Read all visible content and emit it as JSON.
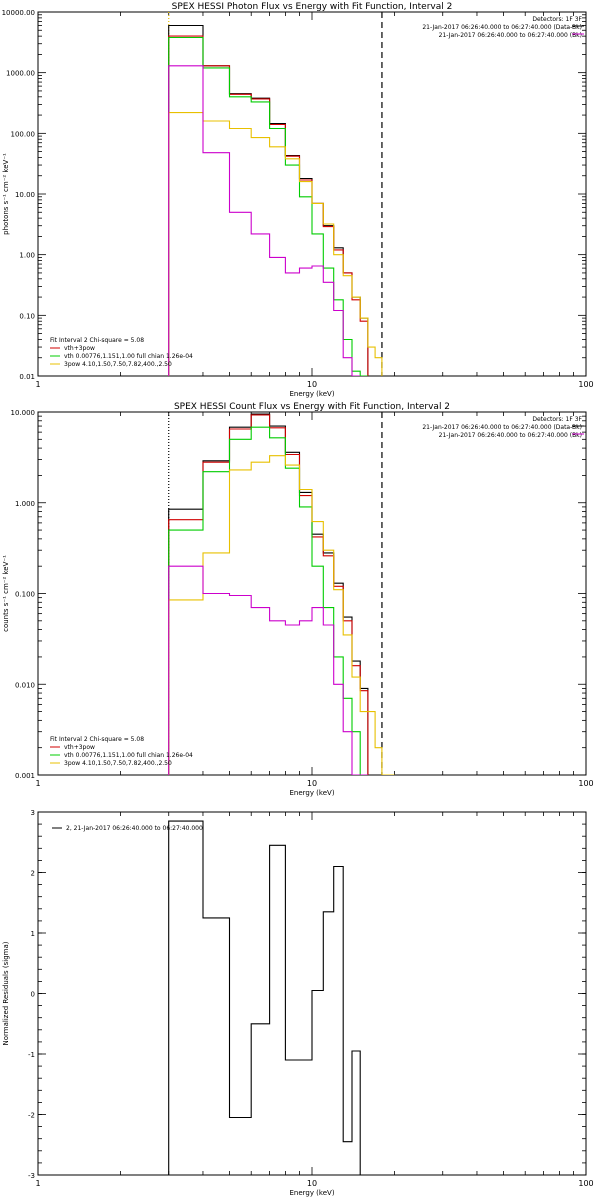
{
  "chart_data": [
    {
      "type": "line",
      "title": "SPEX HESSI Photon Flux vs Energy with Fit Function, Interval 2",
      "xlabel": "Energy (keV)",
      "ylabel": "photons s⁻¹ cm⁻² keV⁻¹",
      "xscale": "log",
      "yscale": "log",
      "xlim": [
        1,
        100
      ],
      "ylim": [
        0.01,
        10000
      ],
      "xticks": [
        {
          "v": 1,
          "label": "1"
        },
        {
          "v": 10,
          "label": "10"
        },
        {
          "v": 100,
          "label": "100"
        }
      ],
      "yticks": [
        {
          "v": 0.01,
          "label": "0.01"
        },
        {
          "v": 0.1,
          "label": "0.10"
        },
        {
          "v": 1,
          "label": "1.00"
        },
        {
          "v": 10,
          "label": "10.00"
        },
        {
          "v": 100,
          "label": "100.00"
        },
        {
          "v": 1000,
          "label": "1000.00"
        },
        {
          "v": 10000,
          "label": "10000.00"
        }
      ],
      "vlines": [
        {
          "x": 3.0,
          "style": "dotted",
          "color": "#e8c000"
        },
        {
          "x": 18.0,
          "style": "dashed",
          "color": "#000000"
        }
      ],
      "header_right": [
        "Detectors: 1F 3F",
        "21-Jan-2017 06:26:40.000 to 06:27:40.000 (Data-Bk)",
        "21-Jan-2017 06:26:40.000 to 06:27:40.000 (Bk)"
      ],
      "fit_text": "Fit Interval 2   Chi-square = 5.08",
      "legend": [
        {
          "label": "vth+3pow",
          "color": "#d00000"
        },
        {
          "label": "vth 0.00776,1.151,1.00  full chian 1.26e-04",
          "color": "#00cc00"
        },
        {
          "label": "3pow 4.10,1.50,7.50,7.82,400.,2.50",
          "color": "#e8c000"
        }
      ],
      "edges": [
        3,
        4,
        5,
        6,
        7,
        8,
        9,
        10,
        11,
        12,
        13,
        14,
        15,
        16,
        17,
        18,
        19,
        20,
        21,
        22,
        23,
        24,
        25
      ],
      "series": [
        {
          "color": "#000000",
          "values": [
            6000,
            1300,
            450,
            380,
            145,
            43,
            18,
            7,
            3,
            1.3,
            0.5,
            0.2,
            0.09,
            null,
            null,
            null,
            null,
            null,
            null,
            null,
            null,
            null
          ]
        },
        {
          "color": "#d00000",
          "values": [
            4000,
            1300,
            440,
            370,
            140,
            42,
            17,
            7,
            2.9,
            1.2,
            0.5,
            0.18,
            0.08,
            null,
            null,
            null,
            null,
            null,
            null,
            null,
            null,
            null
          ]
        },
        {
          "color": "#00cc00",
          "values": [
            3800,
            1200,
            400,
            330,
            120,
            30,
            9,
            2.2,
            0.6,
            0.18,
            0.04,
            0.012,
            0.01,
            null,
            null,
            null,
            null,
            null,
            null,
            null,
            null,
            null
          ]
        },
        {
          "color": "#e8c000",
          "values": [
            220,
            160,
            120,
            85,
            60,
            38,
            16,
            7,
            3.2,
            1.0,
            0.45,
            0.2,
            0.09,
            0.03,
            0.02,
            null,
            null,
            null,
            null,
            null,
            null,
            null
          ]
        },
        {
          "color": "#cc00cc",
          "values": [
            1300,
            48,
            5,
            2.2,
            0.9,
            0.5,
            0.6,
            0.65,
            0.35,
            0.12,
            0.02,
            0.01,
            null,
            null,
            null,
            null,
            null,
            null,
            null,
            null,
            null,
            null
          ]
        }
      ]
    },
    {
      "type": "line",
      "title": "SPEX HESSI Count Flux vs Energy with Fit Function, Interval 2",
      "xlabel": "Energy (keV)",
      "ylabel": "counts s⁻¹ cm⁻² keV⁻¹",
      "xscale": "log",
      "yscale": "log",
      "xlim": [
        1,
        100
      ],
      "ylim": [
        0.001,
        10
      ],
      "xticks": [
        {
          "v": 1,
          "label": "1"
        },
        {
          "v": 10,
          "label": "10"
        },
        {
          "v": 100,
          "label": "100"
        }
      ],
      "yticks": [
        {
          "v": 0.001,
          "label": "0.001"
        },
        {
          "v": 0.01,
          "label": "0.010"
        },
        {
          "v": 0.1,
          "label": "0.100"
        },
        {
          "v": 1,
          "label": "1.000"
        },
        {
          "v": 10,
          "label": "10.000"
        }
      ],
      "vlines": [
        {
          "x": 3.0,
          "style": "dotted",
          "color": "#000000"
        },
        {
          "x": 18.0,
          "style": "dashed",
          "color": "#000000"
        }
      ],
      "header_right": [
        "Detectors: 1F 3F",
        "21-Jan-2017 06:26:40.000 to 06:27:40.000 (Data-Bk)",
        "21-Jan-2017 06:26:40.000 to 06:27:40.000 (Bk)"
      ],
      "fit_text": "Fit Interval 2   Chi-square = 5.08",
      "legend": [
        {
          "label": "vth+3pow",
          "color": "#d00000"
        },
        {
          "label": "vth 0.00776,1.151,1.00  full chian 1.26e-04",
          "color": "#00cc00"
        },
        {
          "label": "3pow 4.10,1.50,7.50,7.82,400.,2.50",
          "color": "#e8c000"
        }
      ],
      "edges": [
        3,
        4,
        5,
        6,
        7,
        8,
        9,
        10,
        11,
        12,
        13,
        14,
        15,
        16,
        17,
        18,
        19,
        20,
        21,
        22,
        23,
        24,
        25
      ],
      "series": [
        {
          "color": "#000000",
          "values": [
            0.85,
            2.9,
            6.8,
            9.5,
            7.0,
            3.6,
            1.3,
            0.45,
            0.28,
            0.13,
            0.055,
            0.018,
            0.009,
            null,
            null,
            null,
            null,
            null,
            null,
            null,
            null,
            null
          ]
        },
        {
          "color": "#d00000",
          "values": [
            0.65,
            2.8,
            6.5,
            9.3,
            6.7,
            3.4,
            1.2,
            0.42,
            0.26,
            0.12,
            0.05,
            0.016,
            0.0085,
            null,
            null,
            null,
            null,
            null,
            null,
            null,
            null,
            null
          ]
        },
        {
          "color": "#00cc00",
          "values": [
            0.5,
            2.2,
            5.0,
            6.8,
            5.2,
            2.4,
            0.9,
            0.2,
            0.07,
            0.02,
            0.007,
            0.003,
            0.001,
            null,
            null,
            null,
            null,
            null,
            null,
            null,
            null,
            null
          ]
        },
        {
          "color": "#e8c000",
          "values": [
            0.085,
            0.28,
            2.3,
            2.8,
            3.3,
            2.6,
            1.4,
            0.62,
            0.3,
            0.11,
            0.035,
            0.012,
            0.005,
            0.005,
            0.002,
            0.001,
            0.001,
            null,
            null,
            null,
            null,
            null
          ]
        },
        {
          "color": "#cc00cc",
          "values": [
            0.2,
            0.1,
            0.095,
            0.07,
            0.05,
            0.045,
            0.05,
            0.07,
            0.045,
            0.01,
            0.003,
            0.001,
            0.001,
            null,
            null,
            null,
            null,
            null,
            null,
            null,
            null,
            null
          ]
        }
      ]
    },
    {
      "type": "line",
      "title": "",
      "xlabel": "Energy (keV)",
      "ylabel": "Normalized Residuals (sigma)",
      "xscale": "log",
      "yscale": "linear",
      "xlim": [
        1,
        100
      ],
      "ylim": [
        -3,
        3
      ],
      "xticks": [
        {
          "v": 1,
          "label": "1"
        },
        {
          "v": 10,
          "label": "10"
        },
        {
          "v": 100,
          "label": "100"
        }
      ],
      "yticks": [
        {
          "v": -3,
          "label": "-3"
        },
        {
          "v": -2,
          "label": "-2"
        },
        {
          "v": -1,
          "label": "-1"
        },
        {
          "v": 0,
          "label": "0"
        },
        {
          "v": 1,
          "label": "1"
        },
        {
          "v": 2,
          "label": "2"
        },
        {
          "v": 3,
          "label": "3"
        }
      ],
      "legend_left": "2, 21-Jan-2017 06:26:40.000 to 06:27:40.000",
      "edges": [
        3,
        4,
        5,
        6,
        7,
        8,
        9,
        10,
        11,
        12,
        13,
        14,
        15,
        16,
        17,
        18
      ],
      "series": [
        {
          "color": "#000000",
          "values": [
            2.85,
            1.25,
            -2.05,
            -0.5,
            2.45,
            -1.1,
            -1.1,
            0.05,
            1.35,
            2.1,
            -2.45,
            -0.95,
            null,
            null,
            null
          ]
        }
      ]
    }
  ]
}
